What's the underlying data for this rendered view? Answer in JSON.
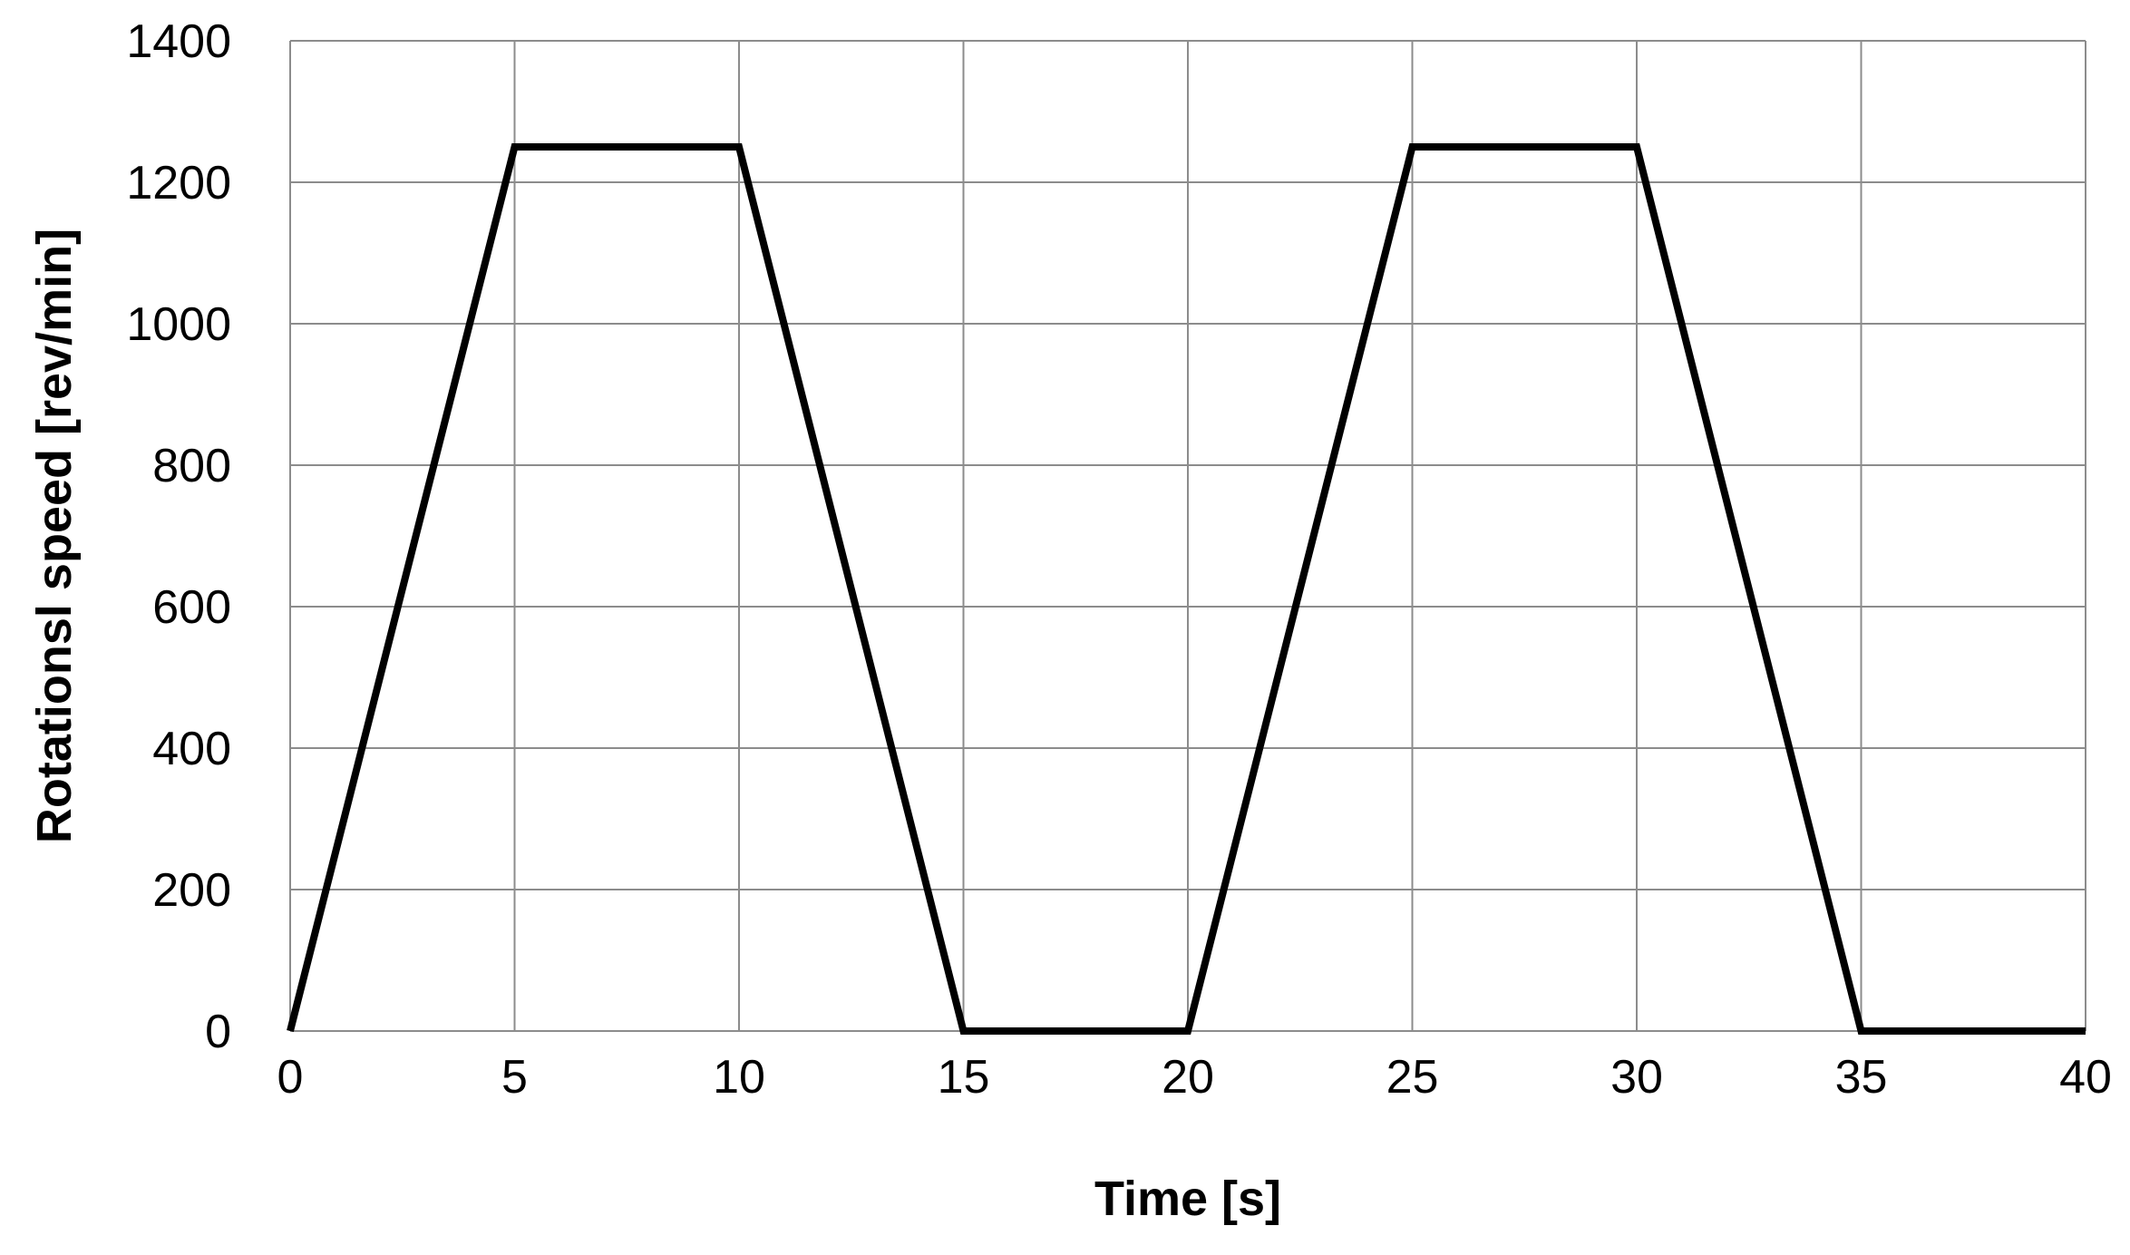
{
  "chart_data": {
    "type": "line",
    "title": "",
    "xlabel": "Time [s]",
    "ylabel": "Rotationsl speed [rev/min]",
    "xlim": [
      0,
      40
    ],
    "ylim": [
      0,
      1400
    ],
    "x_ticks": [
      0,
      5,
      10,
      15,
      20,
      25,
      30,
      35,
      40
    ],
    "y_ticks": [
      0,
      200,
      400,
      600,
      800,
      1000,
      1200,
      1400
    ],
    "grid": true,
    "legend": "none",
    "series": [
      {
        "color": "#000000",
        "x": [
          0,
          5,
          10,
          15,
          20,
          25,
          30,
          35,
          40
        ],
        "y": [
          0,
          1250,
          1250,
          0,
          0,
          1250,
          1250,
          0,
          0
        ]
      }
    ]
  },
  "colors": {
    "grid": "#8c8c8c",
    "line": "#000000",
    "background": "#ffffff"
  }
}
